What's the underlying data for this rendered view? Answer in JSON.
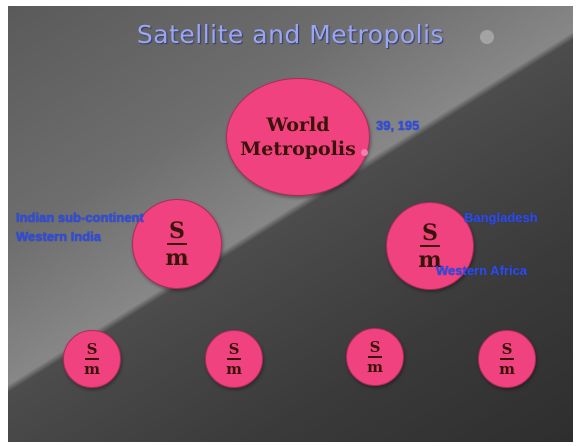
{
  "slide": {
    "title": "Satellite and Metropolis"
  },
  "nodes": {
    "world": {
      "line1": "World",
      "line2": "Metropolis"
    },
    "satellite_symbol": {
      "top": "S",
      "bottom": "m"
    }
  },
  "labels": {
    "world": "39, 195",
    "left_line1": "Indian sub-continent",
    "left_line2": "Western India",
    "right_top": "Bangladesh",
    "right_bottom": "Western Africa"
  },
  "colors": {
    "node_fill": "#f0427f",
    "title_text": "#9aa6f2",
    "label_text": "#2d4ce6"
  }
}
